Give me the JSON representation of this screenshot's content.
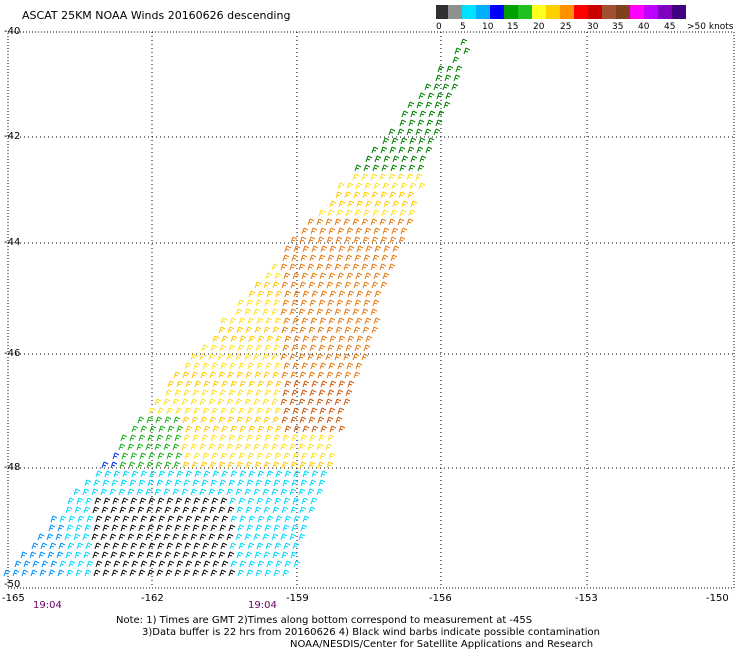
{
  "title": "ASCAT 25KM NOAA Winds 20160626 descending",
  "legend": {
    "colors": [
      "#303030",
      "#909090",
      "#00e0ff",
      "#00b0ff",
      "#0000ff",
      "#00a000",
      "#20c020",
      "#ffff20",
      "#ffd000",
      "#ff9000",
      "#ff0000",
      "#c80000",
      "#a05030",
      "#804020",
      "#ff00ff",
      "#c000ff",
      "#8000c0",
      "#400080"
    ],
    "labels": [
      "0",
      "5",
      "10",
      "15",
      "20",
      "25",
      "30",
      "35",
      "40",
      "45",
      ">50 knots"
    ]
  },
  "axes": {
    "lat_labels": [
      "-40",
      "-42",
      "-44",
      "-46",
      "-48",
      "-50"
    ],
    "lon_labels": [
      "-165",
      "-162",
      "-159",
      "-156",
      "-153",
      "-150"
    ]
  },
  "times": [
    "19:04",
    "19:04"
  ],
  "notes": [
    "Note: 1) Times are GMT 2)Times along bottom correspond to measurement at -45S",
    "3)Data buffer is 22 hrs from 20160626 4) Black wind barbs indicate possible contamination",
    "NOAA/NESDIS/Center for Satellite Applications and Research"
  ],
  "map_data": {
    "lat_range": [
      -50,
      -40
    ],
    "lon_range": [
      -165,
      -150
    ],
    "swath_region_speeds": {
      "northeast": "green",
      "north_center": "yellow",
      "center": "yellow",
      "east_center": "orange",
      "west": "green",
      "west_mid": "blue",
      "south": "cyan",
      "south_center": "black"
    }
  }
}
